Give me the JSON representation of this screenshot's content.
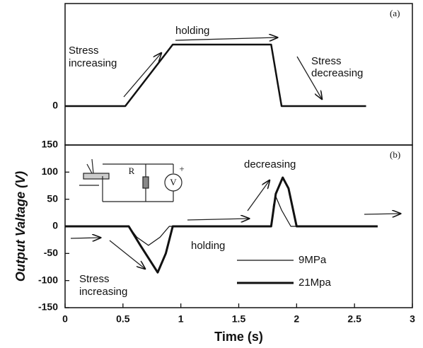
{
  "chart_data": [
    {
      "type": "line",
      "panel_label": "(a)",
      "ylim": [
        -0.55,
        1.45
      ],
      "yticks": [
        0
      ],
      "xlim": [
        0,
        3
      ],
      "series": [
        {
          "color": "#111111",
          "x": [
            0,
            0.52,
            0.93,
            1.78,
            1.87,
            2.6
          ],
          "values": [
            0,
            0,
            0.87,
            0.87,
            0,
            0
          ]
        }
      ],
      "annotations": [
        "Stress",
        "increasing",
        "holding",
        "Stress",
        "decreasing"
      ]
    },
    {
      "type": "line",
      "panel_label": "(b)",
      "xlabel": "Time (s)",
      "ylabel": "Output Valtage (V)",
      "xlim": [
        0,
        3
      ],
      "xticks": [
        0,
        0.5,
        1,
        1.5,
        2,
        2.5,
        3
      ],
      "ylim": [
        -150,
        150
      ],
      "yticks": [
        -150,
        -100,
        -50,
        0,
        50,
        100,
        150
      ],
      "series": [
        {
          "name": "9MPa",
          "color": "#111111",
          "width": 1.2,
          "x": [
            0,
            0.55,
            0.62,
            0.72,
            0.82,
            0.9,
            1.78,
            1.8,
            1.82,
            1.87,
            1.95,
            2.7
          ],
          "values": [
            0,
            0,
            -20,
            -35,
            -20,
            0,
            0,
            40,
            55,
            30,
            0,
            0
          ]
        },
        {
          "name": "21Mpa",
          "color": "#111111",
          "width": 3,
          "x": [
            0,
            0.55,
            0.65,
            0.8,
            0.87,
            0.93,
            1.78,
            1.82,
            1.88,
            1.93,
            2.0,
            2.7
          ],
          "values": [
            0,
            0,
            -35,
            -85,
            -50,
            0,
            0,
            60,
            90,
            70,
            0,
            0
          ]
        }
      ],
      "annotations": [
        "decreasing",
        "holding",
        "Stress",
        "increasing"
      ],
      "inset_labels": [
        "R",
        "V",
        "+"
      ]
    }
  ]
}
